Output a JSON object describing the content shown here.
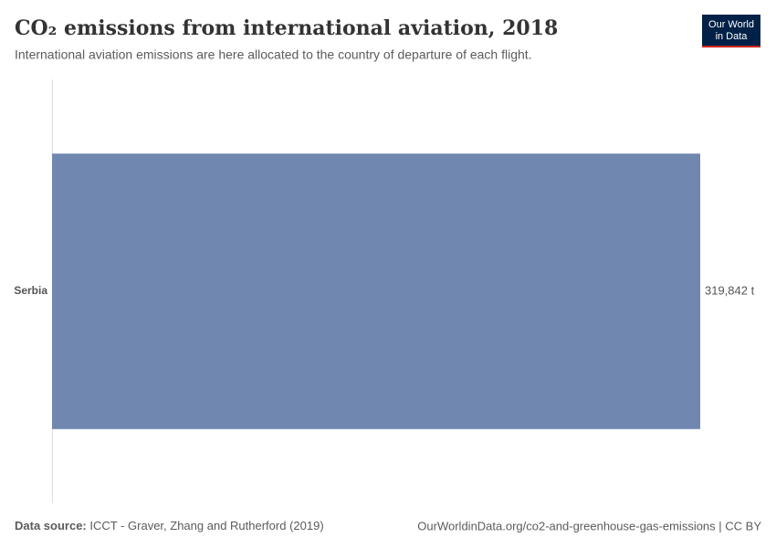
{
  "chart_data": {
    "type": "bar",
    "orientation": "horizontal",
    "title": "CO₂ emissions from international aviation, 2018",
    "subtitle": "International aviation emissions are here allocated to the country of departure of each flight.",
    "categories": [
      "Serbia"
    ],
    "values": [
      319842
    ],
    "value_labels": [
      "319,842 t"
    ],
    "color": "#7087b0",
    "source_label": "Data source:",
    "source": "ICCT - Graver, Zhang and Rutherford (2019)",
    "url": "OurWorldinData.org/co2-and-greenhouse-gas-emissions | CC BY",
    "logo": [
      "Our World",
      "in Data"
    ]
  }
}
